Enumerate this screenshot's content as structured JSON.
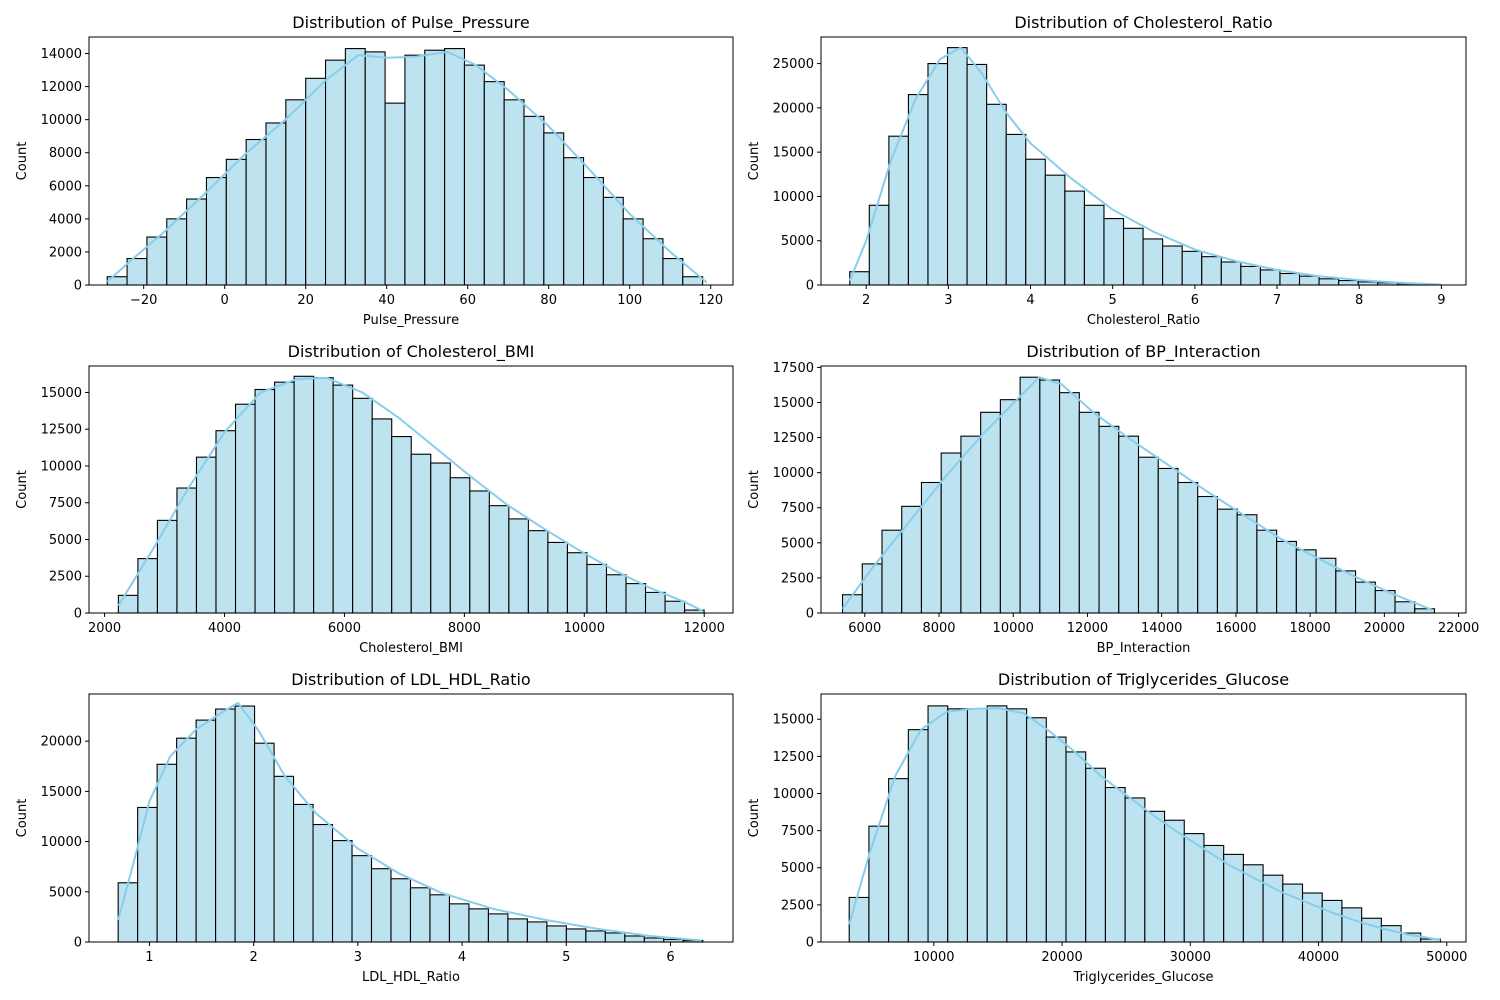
{
  "chart_data": [
    {
      "type": "bar",
      "title": "Distribution of Pulse_Pressure",
      "xlabel": "Pulse_Pressure",
      "ylabel": "Count",
      "xlim": [
        -33.5,
        125.5
      ],
      "ylim": [
        0,
        15000
      ],
      "xticks": [
        -20,
        0,
        20,
        40,
        60,
        80,
        100,
        120
      ],
      "xticklabels": [
        "−20",
        "0",
        "20",
        "40",
        "60",
        "80",
        "100",
        "120"
      ],
      "yticks": [
        0,
        2000,
        4000,
        6000,
        8000,
        10000,
        12000,
        14000
      ],
      "yticklabels": [
        "0",
        "2000",
        "4000",
        "6000",
        "8000",
        "10000",
        "12000",
        "14000"
      ],
      "bin_start": -29,
      "bin_width": 4.9,
      "values": [
        500,
        1600,
        2900,
        4000,
        5200,
        6500,
        7600,
        8800,
        9800,
        11200,
        12500,
        13600,
        14300,
        14100,
        11000,
        13900,
        14200,
        14300,
        13300,
        12300,
        11200,
        10200,
        9200,
        7700,
        6500,
        5300,
        4000,
        2800,
        1600,
        500
      ],
      "kde": [
        [
          -29,
          200
        ],
        [
          -24,
          1300
        ],
        [
          -15,
          3200
        ],
        [
          -5,
          5500
        ],
        [
          5,
          7900
        ],
        [
          15,
          10000
        ],
        [
          25,
          12400
        ],
        [
          33,
          13900
        ],
        [
          40,
          13750
        ],
        [
          47,
          13800
        ],
        [
          55,
          14100
        ],
        [
          62,
          13300
        ],
        [
          70,
          11800
        ],
        [
          80,
          9600
        ],
        [
          90,
          7000
        ],
        [
          100,
          4300
        ],
        [
          110,
          2000
        ],
        [
          119,
          150
        ]
      ]
    },
    {
      "type": "bar",
      "title": "Distribution of Cholesterol_Ratio",
      "xlabel": "Cholesterol_Ratio",
      "ylabel": "Count",
      "xlim": [
        1.45,
        9.3
      ],
      "ylim": [
        0,
        28000
      ],
      "xticks": [
        2,
        3,
        4,
        5,
        6,
        7,
        8,
        9
      ],
      "xticklabels": [
        "2",
        "3",
        "4",
        "5",
        "6",
        "7",
        "8",
        "9"
      ],
      "yticks": [
        0,
        5000,
        10000,
        15000,
        20000,
        25000
      ],
      "yticklabels": [
        "0",
        "5000",
        "10000",
        "15000",
        "20000",
        "25000"
      ],
      "bin_start": 1.8,
      "bin_width": 0.238,
      "values": [
        1500,
        9000,
        16800,
        21500,
        25000,
        26800,
        24900,
        20400,
        17000,
        14200,
        12400,
        10600,
        9000,
        7500,
        6400,
        5200,
        4400,
        3800,
        3200,
        2600,
        2100,
        1700,
        1300,
        1000,
        700,
        500,
        350,
        250,
        150,
        100
      ],
      "kde": [
        [
          1.8,
          500
        ],
        [
          2.0,
          5000
        ],
        [
          2.3,
          14000
        ],
        [
          2.6,
          21000
        ],
        [
          2.9,
          25500
        ],
        [
          3.15,
          26800
        ],
        [
          3.4,
          24000
        ],
        [
          3.7,
          19500
        ],
        [
          4.0,
          16000
        ],
        [
          4.5,
          12000
        ],
        [
          5.0,
          8500
        ],
        [
          5.5,
          6000
        ],
        [
          6.0,
          4000
        ],
        [
          6.5,
          2700
        ],
        [
          7.0,
          1700
        ],
        [
          7.5,
          1000
        ],
        [
          8.0,
          550
        ],
        [
          8.5,
          250
        ],
        [
          9.0,
          50
        ]
      ]
    },
    {
      "type": "bar",
      "title": "Distribution of Cholesterol_BMI",
      "xlabel": "Cholesterol_BMI",
      "ylabel": "Count",
      "xlim": [
        1740,
        12480
      ],
      "ylim": [
        0,
        16800
      ],
      "xticks": [
        2000,
        4000,
        6000,
        8000,
        10000,
        12000
      ],
      "xticklabels": [
        "2000",
        "4000",
        "6000",
        "8000",
        "10000",
        "12000"
      ],
      "yticks": [
        0,
        2500,
        5000,
        7500,
        10000,
        12500,
        15000
      ],
      "yticklabels": [
        "0",
        "2500",
        "5000",
        "7500",
        "10000",
        "12500",
        "15000"
      ],
      "bin_start": 2230,
      "bin_width": 325.6,
      "values": [
        1200,
        3700,
        6300,
        8500,
        10600,
        12400,
        14200,
        15200,
        15700,
        16100,
        16000,
        15500,
        14600,
        13200,
        12000,
        10800,
        10200,
        9200,
        8300,
        7300,
        6400,
        5600,
        4800,
        4100,
        3300,
        2600,
        2000,
        1400,
        800,
        200
      ],
      "kde": [
        [
          2230,
          500
        ],
        [
          2800,
          4300
        ],
        [
          3400,
          8500
        ],
        [
          4000,
          12300
        ],
        [
          4600,
          15000
        ],
        [
          5200,
          15900
        ],
        [
          5700,
          16000
        ],
        [
          6300,
          15000
        ],
        [
          6900,
          13300
        ],
        [
          7500,
          11300
        ],
        [
          8100,
          9300
        ],
        [
          8700,
          7400
        ],
        [
          9300,
          5800
        ],
        [
          9900,
          4300
        ],
        [
          10500,
          2900
        ],
        [
          11100,
          1700
        ],
        [
          11700,
          700
        ],
        [
          11970,
          150
        ]
      ]
    },
    {
      "type": "bar",
      "title": "Distribution of BP_Interaction",
      "xlabel": "BP_Interaction",
      "ylabel": "Count",
      "xlim": [
        4820,
        22200
      ],
      "ylim": [
        0,
        17600
      ],
      "xticks": [
        6000,
        8000,
        10000,
        12000,
        14000,
        16000,
        18000,
        20000,
        22000
      ],
      "xticklabels": [
        "6000",
        "8000",
        "10000",
        "12000",
        "14000",
        "16000",
        "18000",
        "20000",
        "22000"
      ],
      "yticks": [
        0,
        2500,
        5000,
        7500,
        10000,
        12500,
        15000,
        17500
      ],
      "yticklabels": [
        "0",
        "2500",
        "5000",
        "7500",
        "10000",
        "12500",
        "15000",
        "17500"
      ],
      "bin_start": 5400,
      "bin_width": 531.7,
      "values": [
        1300,
        3500,
        5900,
        7600,
        9300,
        11400,
        12600,
        14300,
        15200,
        16800,
        16600,
        15700,
        14300,
        13300,
        12600,
        11100,
        10300,
        9300,
        8300,
        7400,
        7000,
        5900,
        5100,
        4500,
        3900,
        3000,
        2200,
        1600,
        800,
        300
      ],
      "kde": [
        [
          5400,
          300
        ],
        [
          6200,
          3200
        ],
        [
          7200,
          6500
        ],
        [
          8200,
          9800
        ],
        [
          9200,
          12800
        ],
        [
          10100,
          15200
        ],
        [
          10700,
          16800
        ],
        [
          11300,
          16300
        ],
        [
          12200,
          14200
        ],
        [
          13200,
          12300
        ],
        [
          14200,
          10500
        ],
        [
          15200,
          8700
        ],
        [
          16200,
          7000
        ],
        [
          17200,
          5300
        ],
        [
          18200,
          3900
        ],
        [
          19200,
          2600
        ],
        [
          20200,
          1400
        ],
        [
          21300,
          200
        ]
      ]
    },
    {
      "type": "bar",
      "title": "Distribution of LDL_HDL_Ratio",
      "xlabel": "LDL_HDL_Ratio",
      "ylabel": "Count",
      "xlim": [
        0.42,
        6.6
      ],
      "ylim": [
        0,
        24700
      ],
      "xticks": [
        1,
        2,
        3,
        4,
        5,
        6
      ],
      "xticklabels": [
        "1",
        "2",
        "3",
        "4",
        "5",
        "6"
      ],
      "yticks": [
        0,
        5000,
        10000,
        15000,
        20000
      ],
      "yticklabels": [
        "0",
        "5000",
        "10000",
        "15000",
        "20000"
      ],
      "bin_start": 0.7,
      "bin_width": 0.187,
      "values": [
        5900,
        13400,
        17700,
        20300,
        22100,
        23200,
        23500,
        19800,
        16500,
        13700,
        11700,
        10100,
        8600,
        7300,
        6300,
        5400,
        4700,
        3800,
        3300,
        2800,
        2300,
        2000,
        1600,
        1300,
        1100,
        900,
        600,
        400,
        250,
        150
      ],
      "kde": [
        [
          0.7,
          2200
        ],
        [
          0.85,
          8000
        ],
        [
          1.0,
          14000
        ],
        [
          1.2,
          18500
        ],
        [
          1.45,
          21200
        ],
        [
          1.7,
          22900
        ],
        [
          1.85,
          23800
        ],
        [
          2.05,
          21000
        ],
        [
          2.3,
          16500
        ],
        [
          2.6,
          12800
        ],
        [
          3.0,
          9300
        ],
        [
          3.4,
          6800
        ],
        [
          3.8,
          4900
        ],
        [
          4.3,
          3300
        ],
        [
          4.8,
          2200
        ],
        [
          5.3,
          1300
        ],
        [
          5.8,
          600
        ],
        [
          6.3,
          150
        ]
      ]
    },
    {
      "type": "bar",
      "title": "Distribution of Triglycerides_Glucose",
      "xlabel": "Triglycerides_Glucose",
      "ylabel": "Count",
      "xlim": [
        1200,
        51500
      ],
      "ylim": [
        0,
        16700
      ],
      "xticks": [
        10000,
        20000,
        30000,
        40000,
        50000
      ],
      "xticklabels": [
        "10000",
        "20000",
        "30000",
        "40000",
        "50000"
      ],
      "yticks": [
        0,
        2500,
        5000,
        7500,
        10000,
        12500,
        15000
      ],
      "yticklabels": [
        "0",
        "2500",
        "5000",
        "7500",
        "10000",
        "12500",
        "15000"
      ],
      "bin_start": 3400,
      "bin_width": 1537,
      "values": [
        3000,
        7800,
        11000,
        14300,
        15900,
        15700,
        15700,
        15900,
        15700,
        15100,
        13800,
        12800,
        11700,
        10400,
        9700,
        8800,
        8200,
        7300,
        6500,
        5900,
        5200,
        4500,
        3900,
        3300,
        2800,
        2300,
        1600,
        1100,
        600,
        200
      ],
      "kde": [
        [
          3400,
          1200
        ],
        [
          5000,
          6000
        ],
        [
          7000,
          11200
        ],
        [
          9000,
          14300
        ],
        [
          11000,
          15500
        ],
        [
          13000,
          15700
        ],
        [
          15000,
          15750
        ],
        [
          17000,
          15400
        ],
        [
          19000,
          14200
        ],
        [
          21000,
          12800
        ],
        [
          23000,
          11200
        ],
        [
          25000,
          9900
        ],
        [
          27000,
          8600
        ],
        [
          29000,
          7400
        ],
        [
          31000,
          6300
        ],
        [
          33000,
          5200
        ],
        [
          35000,
          4300
        ],
        [
          37000,
          3400
        ],
        [
          39000,
          2700
        ],
        [
          41000,
          2000
        ],
        [
          43000,
          1400
        ],
        [
          45000,
          900
        ],
        [
          47000,
          500
        ],
        [
          49500,
          150
        ]
      ]
    }
  ],
  "colors": {
    "bar_fill": "#bde3f0",
    "bar_edge": "#000000",
    "kde_line": "#87ceeb"
  }
}
